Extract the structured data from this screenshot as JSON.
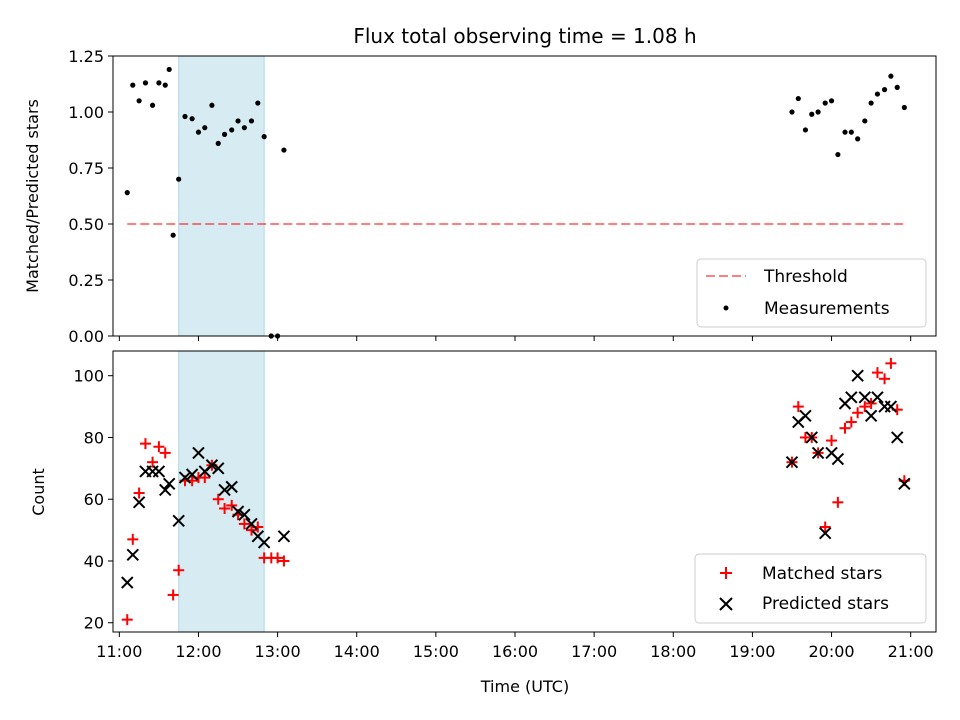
{
  "chart_data": [
    {
      "type": "scatter",
      "title": "Flux total observing time = 1.08 h",
      "xlabel": "",
      "ylabel": "Matched/Predicted stars",
      "xlim_hours": [
        10.92,
        21.32
      ],
      "ylim": [
        0,
        1.25
      ],
      "yticks": [
        "0.00",
        "0.25",
        "0.50",
        "0.75",
        "1.00",
        "1.25"
      ],
      "highlight_span_hours": [
        11.75,
        12.83
      ],
      "highlight_color": "#add8e6",
      "threshold": {
        "label": "Threshold",
        "value": 0.5,
        "x_range_hours": [
          11.1,
          20.93
        ],
        "color": "#ff0000"
      },
      "legend": [
        "Threshold",
        "Measurements"
      ],
      "legend_position": "lower-right",
      "series": [
        {
          "name": "Measurements",
          "color": "#000000",
          "points": [
            [
              11.1,
              0.64
            ],
            [
              11.17,
              1.12
            ],
            [
              11.25,
              1.05
            ],
            [
              11.33,
              1.13
            ],
            [
              11.42,
              1.03
            ],
            [
              11.5,
              1.13
            ],
            [
              11.58,
              1.12
            ],
            [
              11.63,
              1.19
            ],
            [
              11.68,
              0.45
            ],
            [
              11.75,
              0.7
            ],
            [
              11.83,
              0.98
            ],
            [
              11.92,
              0.97
            ],
            [
              12.0,
              0.91
            ],
            [
              12.08,
              0.93
            ],
            [
              12.17,
              1.03
            ],
            [
              12.25,
              0.86
            ],
            [
              12.33,
              0.9
            ],
            [
              12.42,
              0.92
            ],
            [
              12.5,
              0.96
            ],
            [
              12.58,
              0.93
            ],
            [
              12.67,
              0.96
            ],
            [
              12.75,
              1.04
            ],
            [
              12.83,
              0.89
            ],
            [
              12.92,
              0.0
            ],
            [
              13.0,
              0.0
            ],
            [
              13.08,
              0.83
            ],
            [
              19.5,
              1.0
            ],
            [
              19.58,
              1.06
            ],
            [
              19.67,
              0.92
            ],
            [
              19.75,
              0.99
            ],
            [
              19.83,
              1.0
            ],
            [
              19.92,
              1.04
            ],
            [
              20.0,
              1.05
            ],
            [
              20.08,
              0.81
            ],
            [
              20.17,
              0.91
            ],
            [
              20.25,
              0.91
            ],
            [
              20.33,
              0.88
            ],
            [
              20.42,
              0.96
            ],
            [
              20.5,
              1.04
            ],
            [
              20.58,
              1.08
            ],
            [
              20.67,
              1.1
            ],
            [
              20.75,
              1.16
            ],
            [
              20.83,
              1.11
            ],
            [
              20.92,
              1.02
            ]
          ]
        }
      ]
    },
    {
      "type": "scatter",
      "title": "",
      "xlabel": "Time (UTC)",
      "ylabel": "Count",
      "xlim_hours": [
        10.92,
        21.32
      ],
      "ylim": [
        17,
        108
      ],
      "yticks": [
        "20",
        "40",
        "60",
        "80",
        "100"
      ],
      "xticks": [
        "11:00",
        "12:00",
        "13:00",
        "14:00",
        "15:00",
        "16:00",
        "17:00",
        "18:00",
        "19:00",
        "20:00",
        "21:00"
      ],
      "highlight_span_hours": [
        11.75,
        12.83
      ],
      "highlight_color": "#add8e6",
      "legend": [
        "Matched stars",
        "Predicted stars"
      ],
      "legend_position": "lower-right",
      "series": [
        {
          "name": "Matched stars",
          "marker": "plus",
          "color": "#ff0000",
          "points": [
            [
              11.1,
              21
            ],
            [
              11.17,
              47
            ],
            [
              11.25,
              62
            ],
            [
              11.33,
              78
            ],
            [
              11.42,
              72
            ],
            [
              11.5,
              77
            ],
            [
              11.58,
              75
            ],
            [
              11.68,
              29
            ],
            [
              11.75,
              37
            ],
            [
              11.83,
              66
            ],
            [
              11.92,
              66
            ],
            [
              12.0,
              67
            ],
            [
              12.08,
              67
            ],
            [
              12.17,
              71
            ],
            [
              12.25,
              60
            ],
            [
              12.33,
              57
            ],
            [
              12.42,
              58
            ],
            [
              12.5,
              55
            ],
            [
              12.58,
              52
            ],
            [
              12.67,
              50
            ],
            [
              12.75,
              51
            ],
            [
              12.83,
              41
            ],
            [
              12.92,
              41
            ],
            [
              13.0,
              41
            ],
            [
              13.08,
              40
            ],
            [
              19.5,
              72
            ],
            [
              19.58,
              90
            ],
            [
              19.67,
              80
            ],
            [
              19.75,
              80
            ],
            [
              19.83,
              75
            ],
            [
              19.92,
              51
            ],
            [
              20.0,
              79
            ],
            [
              20.08,
              59
            ],
            [
              20.17,
              83
            ],
            [
              20.25,
              85
            ],
            [
              20.33,
              88
            ],
            [
              20.42,
              90
            ],
            [
              20.5,
              91
            ],
            [
              20.58,
              101
            ],
            [
              20.67,
              99
            ],
            [
              20.75,
              104
            ],
            [
              20.83,
              89
            ],
            [
              20.92,
              66
            ]
          ]
        },
        {
          "name": "Predicted stars",
          "marker": "x",
          "color": "#000000",
          "points": [
            [
              11.1,
              33
            ],
            [
              11.17,
              42
            ],
            [
              11.25,
              59
            ],
            [
              11.33,
              69
            ],
            [
              11.42,
              69
            ],
            [
              11.5,
              69
            ],
            [
              11.58,
              63
            ],
            [
              11.63,
              65
            ],
            [
              11.75,
              53
            ],
            [
              11.83,
              67
            ],
            [
              11.92,
              68
            ],
            [
              12.0,
              75
            ],
            [
              12.08,
              69
            ],
            [
              12.17,
              71
            ],
            [
              12.25,
              70
            ],
            [
              12.33,
              63
            ],
            [
              12.42,
              64
            ],
            [
              12.5,
              56
            ],
            [
              12.58,
              55
            ],
            [
              12.67,
              52
            ],
            [
              12.75,
              48
            ],
            [
              12.83,
              46
            ],
            [
              13.08,
              48
            ],
            [
              19.5,
              72
            ],
            [
              19.58,
              85
            ],
            [
              19.67,
              87
            ],
            [
              19.75,
              80
            ],
            [
              19.83,
              75
            ],
            [
              19.92,
              49
            ],
            [
              20.0,
              75
            ],
            [
              20.08,
              73
            ],
            [
              20.17,
              91
            ],
            [
              20.25,
              93
            ],
            [
              20.33,
              100
            ],
            [
              20.42,
              93
            ],
            [
              20.5,
              87
            ],
            [
              20.58,
              93
            ],
            [
              20.67,
              90
            ],
            [
              20.75,
              90
            ],
            [
              20.83,
              80
            ],
            [
              20.92,
              65
            ]
          ]
        }
      ]
    }
  ]
}
